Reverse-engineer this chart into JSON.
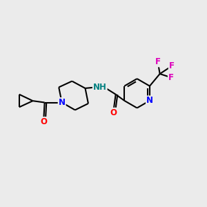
{
  "background_color": "#ebebeb",
  "bond_color": "#000000",
  "atom_colors": {
    "N": "#0000ff",
    "O": "#ff0000",
    "F": "#dd00bb",
    "NH": "#008080",
    "C": "#000000"
  },
  "figsize": [
    3.0,
    3.0
  ],
  "dpi": 100,
  "xlim": [
    0,
    10
  ],
  "ylim": [
    0,
    10
  ]
}
